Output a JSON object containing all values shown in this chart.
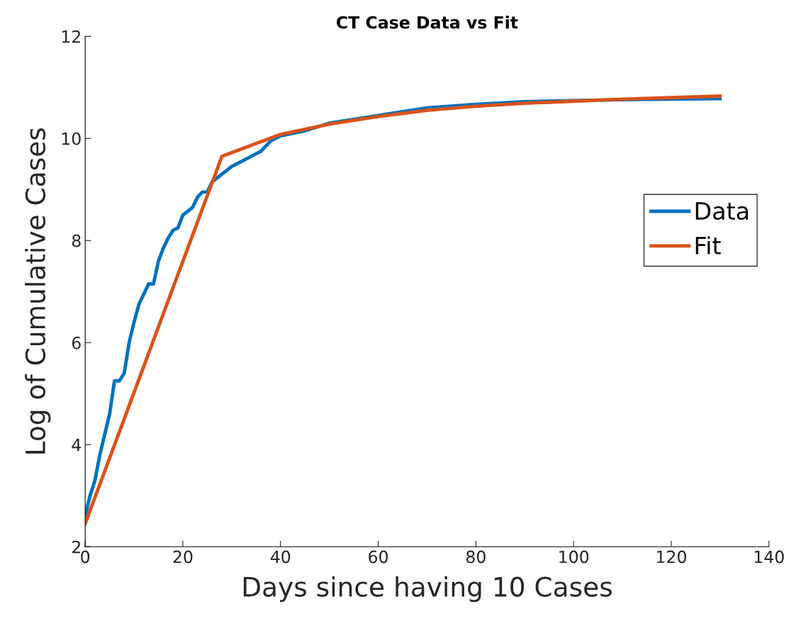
{
  "chart_data": {
    "type": "line",
    "title": "CT Case Data vs Fit",
    "xlabel": "Days since having 10 Cases",
    "ylabel": "Log of Cumulative Cases",
    "xlim": [
      0,
      140
    ],
    "ylim": [
      2,
      12
    ],
    "xticks": [
      0,
      20,
      40,
      60,
      80,
      100,
      120,
      140
    ],
    "yticks": [
      2,
      4,
      6,
      8,
      10,
      12
    ],
    "grid": false,
    "legend": "right",
    "series": [
      {
        "name": "Data",
        "color": "#0072bd",
        "x": [
          0,
          1,
          2,
          3,
          4,
          5,
          6,
          7,
          8,
          9,
          10,
          11,
          12,
          13,
          14,
          15,
          16,
          17,
          18,
          19,
          20,
          22,
          23,
          24,
          25,
          26,
          28,
          30,
          33,
          35,
          36,
          38,
          40,
          45,
          50,
          60,
          70,
          80,
          90,
          100,
          110,
          120,
          130
        ],
        "values": [
          2.6,
          3.0,
          3.3,
          3.8,
          4.2,
          4.6,
          5.25,
          5.25,
          5.4,
          6.0,
          6.4,
          6.75,
          6.95,
          7.15,
          7.15,
          7.6,
          7.85,
          8.05,
          8.2,
          8.25,
          8.5,
          8.65,
          8.85,
          8.95,
          8.95,
          9.15,
          9.3,
          9.45,
          9.6,
          9.7,
          9.75,
          9.95,
          10.05,
          10.15,
          10.3,
          10.45,
          10.6,
          10.67,
          10.72,
          10.74,
          10.76,
          10.77,
          10.78
        ]
      },
      {
        "name": "Fit",
        "color": "#d95319",
        "x": [
          0,
          28,
          40,
          50,
          60,
          70,
          80,
          90,
          100,
          110,
          120,
          130
        ],
        "values": [
          2.45,
          9.65,
          10.08,
          10.28,
          10.43,
          10.55,
          10.63,
          10.69,
          10.73,
          10.77,
          10.8,
          10.83
        ]
      }
    ]
  }
}
